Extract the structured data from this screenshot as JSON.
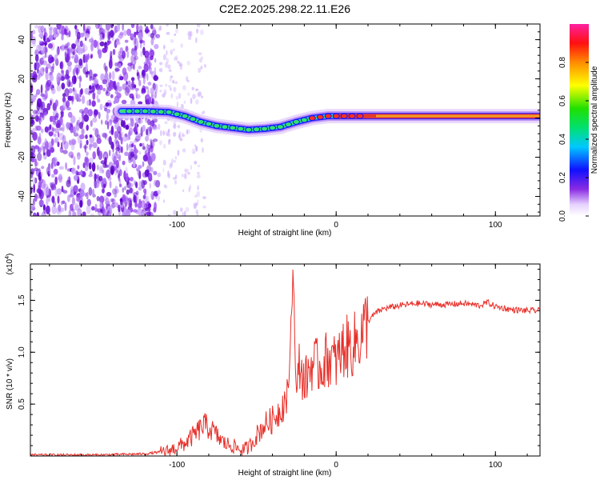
{
  "title": "C2E2.2025.298.22.11.E26",
  "colors": {
    "snr_line": "#e8302a",
    "frame": "#000000"
  },
  "chart_data": [
    {
      "type": "heatmap",
      "name": "spectrogram",
      "xlabel": "Height of straight line (km)",
      "ylabel": "Frequency (Hz)",
      "xlim": [
        -192,
        128
      ],
      "ylim": [
        -50,
        48
      ],
      "x_ticks": [
        -100,
        0,
        100
      ],
      "y_ticks": [
        -40,
        -20,
        0,
        20,
        40
      ],
      "ridge": {
        "description_values_only": "dominant frequency vs height",
        "x": [
          -135,
          -120,
          -105,
          -95,
          -85,
          -75,
          -65,
          -55,
          -45,
          -35,
          -25,
          -15,
          -5,
          5,
          20,
          40,
          60,
          80,
          95,
          110,
          128
        ],
        "y": [
          3.5,
          3.5,
          3.0,
          1.0,
          -2.0,
          -4.0,
          -5.0,
          -6.0,
          -5.5,
          -4.5,
          -2.0,
          0.0,
          1.0,
          1.0,
          1.0,
          1.0,
          1.0,
          1.0,
          1.0,
          1.0,
          1.0
        ]
      },
      "colorbar": {
        "label": "Normalized spectral amplitude",
        "range": [
          0,
          1
        ],
        "ticks": [
          0.0,
          0.2,
          0.4,
          0.6,
          0.8
        ],
        "tick_labels": [
          "0.0",
          "0.2",
          "0.4",
          "0.6",
          "0.8"
        ]
      }
    },
    {
      "type": "line",
      "name": "snr",
      "xlabel": "Height of straight line (km)",
      "ylabel": "SNR (10 * v/v)",
      "y_multiplier": "(x10",
      "y_multiplier_exp": "4",
      "y_multiplier_close": ")",
      "xlim": [
        -192,
        128
      ],
      "ylim": [
        0,
        1.85
      ],
      "x_ticks": [
        -100,
        0,
        100
      ],
      "y_ticks": [
        0.5,
        1.0,
        1.5
      ],
      "y_tick_labels": [
        "0.5",
        "1.0",
        "1.5"
      ],
      "series": [
        {
          "name": "SNR",
          "x": [
            -192,
            -150,
            -120,
            -105,
            -95,
            -88,
            -83,
            -78,
            -74,
            -70,
            -65,
            -60,
            -55,
            -50,
            -45,
            -40,
            -35,
            -30,
            -27,
            -25,
            -23,
            -20,
            -15,
            -10,
            -5,
            0,
            5,
            10,
            15,
            20,
            25,
            30,
            40,
            50,
            60,
            70,
            80,
            90,
            95,
            100,
            110,
            120,
            128
          ],
          "y": [
            0.01,
            0.01,
            0.02,
            0.05,
            0.12,
            0.22,
            0.3,
            0.25,
            0.18,
            0.12,
            0.1,
            0.06,
            0.08,
            0.2,
            0.3,
            0.35,
            0.45,
            0.6,
            1.85,
            0.55,
            0.9,
            0.7,
            0.9,
            0.85,
            0.95,
            0.9,
            1.05,
            1.05,
            1.15,
            1.3,
            1.38,
            1.42,
            1.45,
            1.47,
            1.46,
            1.46,
            1.47,
            1.45,
            1.48,
            1.44,
            1.41,
            1.4,
            1.4
          ]
        }
      ]
    }
  ]
}
